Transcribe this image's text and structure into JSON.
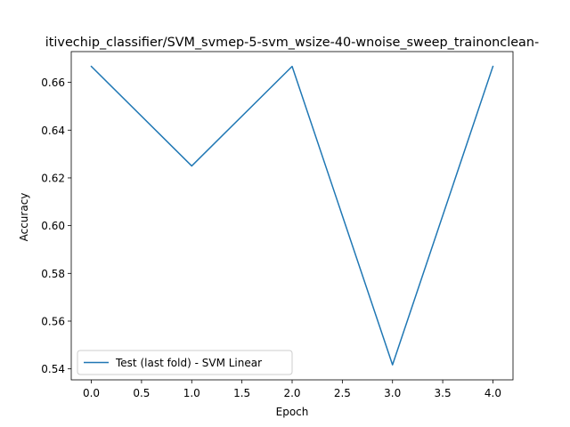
{
  "chart_data": {
    "type": "line",
    "title": "...itivechip_classifier/SVM_svmep-5-svm_wsize-40-wnoise_sweep_trainonclean-...",
    "title_visible": "itivechip_classifier/SVM_svmep-5-svm_wsize-40-wnoise_sweep_trainonclean-",
    "xlabel": "Epoch",
    "ylabel": "Accuracy",
    "xlim": [
      -0.2,
      4.2
    ],
    "ylim": [
      0.5354,
      0.6729
    ],
    "xticks": [
      0.0,
      0.5,
      1.0,
      1.5,
      2.0,
      2.5,
      3.0,
      3.5,
      4.0
    ],
    "xtick_labels": [
      "0.0",
      "0.5",
      "1.0",
      "1.5",
      "2.0",
      "2.5",
      "3.0",
      "3.5",
      "4.0"
    ],
    "yticks": [
      0.54,
      0.56,
      0.58,
      0.6,
      0.62,
      0.64,
      0.66
    ],
    "ytick_labels": [
      "0.54",
      "0.56",
      "0.58",
      "0.60",
      "0.62",
      "0.64",
      "0.66"
    ],
    "grid": false,
    "legend_position": "lower-left",
    "series": [
      {
        "name": "Test (last fold) - SVM Linear",
        "color": "#1f77b4",
        "x": [
          0,
          1,
          2,
          3,
          4
        ],
        "y": [
          0.6667,
          0.625,
          0.6667,
          0.5417,
          0.6667
        ]
      }
    ]
  }
}
